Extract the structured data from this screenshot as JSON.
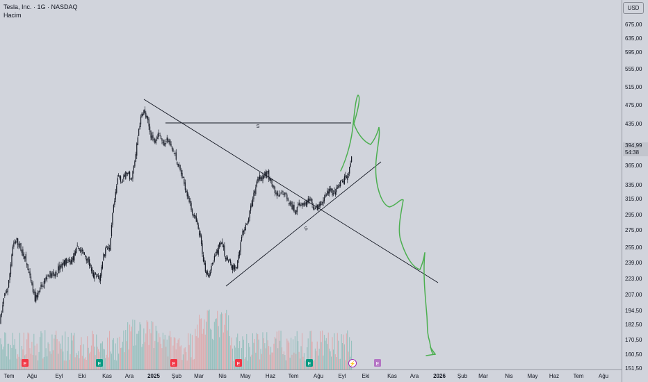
{
  "header": {
    "title": "Tesla, Inc. · 1G · NASDAQ",
    "volume_label": "Hacim"
  },
  "currency": "USD",
  "last_price": {
    "value": "394,99",
    "countdown": "54:38"
  },
  "chart_data": {
    "type": "candlestick",
    "price_ticks": [
      "675,00",
      "635,00",
      "595,00",
      "555,00",
      "515,00",
      "475,00",
      "435,00",
      "394,99",
      "365,00",
      "335,00",
      "315,00",
      "295,00",
      "275,00",
      "255,00",
      "239,00",
      "223,00",
      "207,00",
      "194,50",
      "182,50",
      "170,50",
      "160,50",
      "151,50"
    ],
    "price_tick_values": [
      675,
      635,
      595,
      555,
      515,
      475,
      435,
      394.99,
      365,
      335,
      315,
      295,
      275,
      255,
      239,
      223,
      207,
      194.5,
      182.5,
      170.5,
      160.5,
      151.5
    ],
    "time_ticks": [
      "Tem",
      "Ağu",
      "Eyl",
      "Eki",
      "Kas",
      "Ara",
      "2025",
      "Şub",
      "Mar",
      "Nis",
      "May",
      "Haz",
      "Tem",
      "Ağu",
      "Eyl",
      "Eki",
      "Kas",
      "Ara",
      "2026",
      "Şub",
      "Mar",
      "Nis",
      "May",
      "Haz",
      "Tem",
      "Ağu"
    ],
    "bold_ticks": [
      "2025",
      "2026"
    ],
    "scale": "log",
    "grid": false,
    "approx_close_path": [
      [
        "Tem",
        215
      ],
      [
        "Tem",
        255
      ],
      [
        "Ağu",
        235
      ],
      [
        "Ağu",
        205
      ],
      [
        "Eyl",
        215
      ],
      [
        "Eyl",
        230
      ],
      [
        "Eki",
        250
      ],
      [
        "Eki",
        215
      ],
      [
        "Kas",
        250
      ],
      [
        "Kas",
        320
      ],
      [
        "Ara",
        360
      ],
      [
        "Ara",
        420
      ],
      [
        "2025",
        470
      ],
      [
        "2025",
        405
      ],
      [
        "Şub",
        380
      ],
      [
        "Şub",
        340
      ],
      [
        "Mar",
        260
      ],
      [
        "Mar",
        240
      ],
      [
        "Nis",
        255
      ],
      [
        "Nis",
        235
      ],
      [
        "May",
        280
      ],
      [
        "May",
        345
      ],
      [
        "Haz",
        325
      ],
      [
        "Haz",
        315
      ],
      [
        "Tem",
        310
      ],
      [
        "Tem",
        320
      ],
      [
        "Ağu",
        330
      ],
      [
        "Ağu",
        340
      ],
      [
        "Eyl",
        345
      ],
      [
        "Eyl",
        395
      ]
    ],
    "annotations": [
      {
        "type": "trendline",
        "label": "",
        "from": [
          "2025",
          480
        ],
        "to": [
          "Ara",
          220
        ]
      },
      {
        "type": "trendline",
        "label": "",
        "from": [
          "Nis",
          222
        ],
        "to": [
          "Eki",
          368
        ]
      },
      {
        "type": "horizontal-line",
        "label": "S",
        "price": 437
      },
      {
        "type": "label",
        "label": "S",
        "price": 290
      },
      {
        "type": "freehand-forecast",
        "color": "#4caf50"
      }
    ],
    "event_markers": [
      {
        "label": "E",
        "color": "#f23645"
      },
      {
        "label": "E",
        "color": "#089981"
      },
      {
        "label": "E",
        "color": "#f23645"
      },
      {
        "label": "E",
        "color": "#f23645"
      },
      {
        "label": "E",
        "color": "#089981"
      },
      {
        "label": "⚡",
        "color": "#9c27b0"
      },
      {
        "label": "E",
        "color": "#9c27b0"
      }
    ]
  },
  "colors": {
    "background": "#d1d4dc",
    "candle": "#131722",
    "volume_up": "#7fb8b0",
    "volume_down": "#e29a9a",
    "forecast": "#4caf50",
    "drawing": "#131722"
  }
}
